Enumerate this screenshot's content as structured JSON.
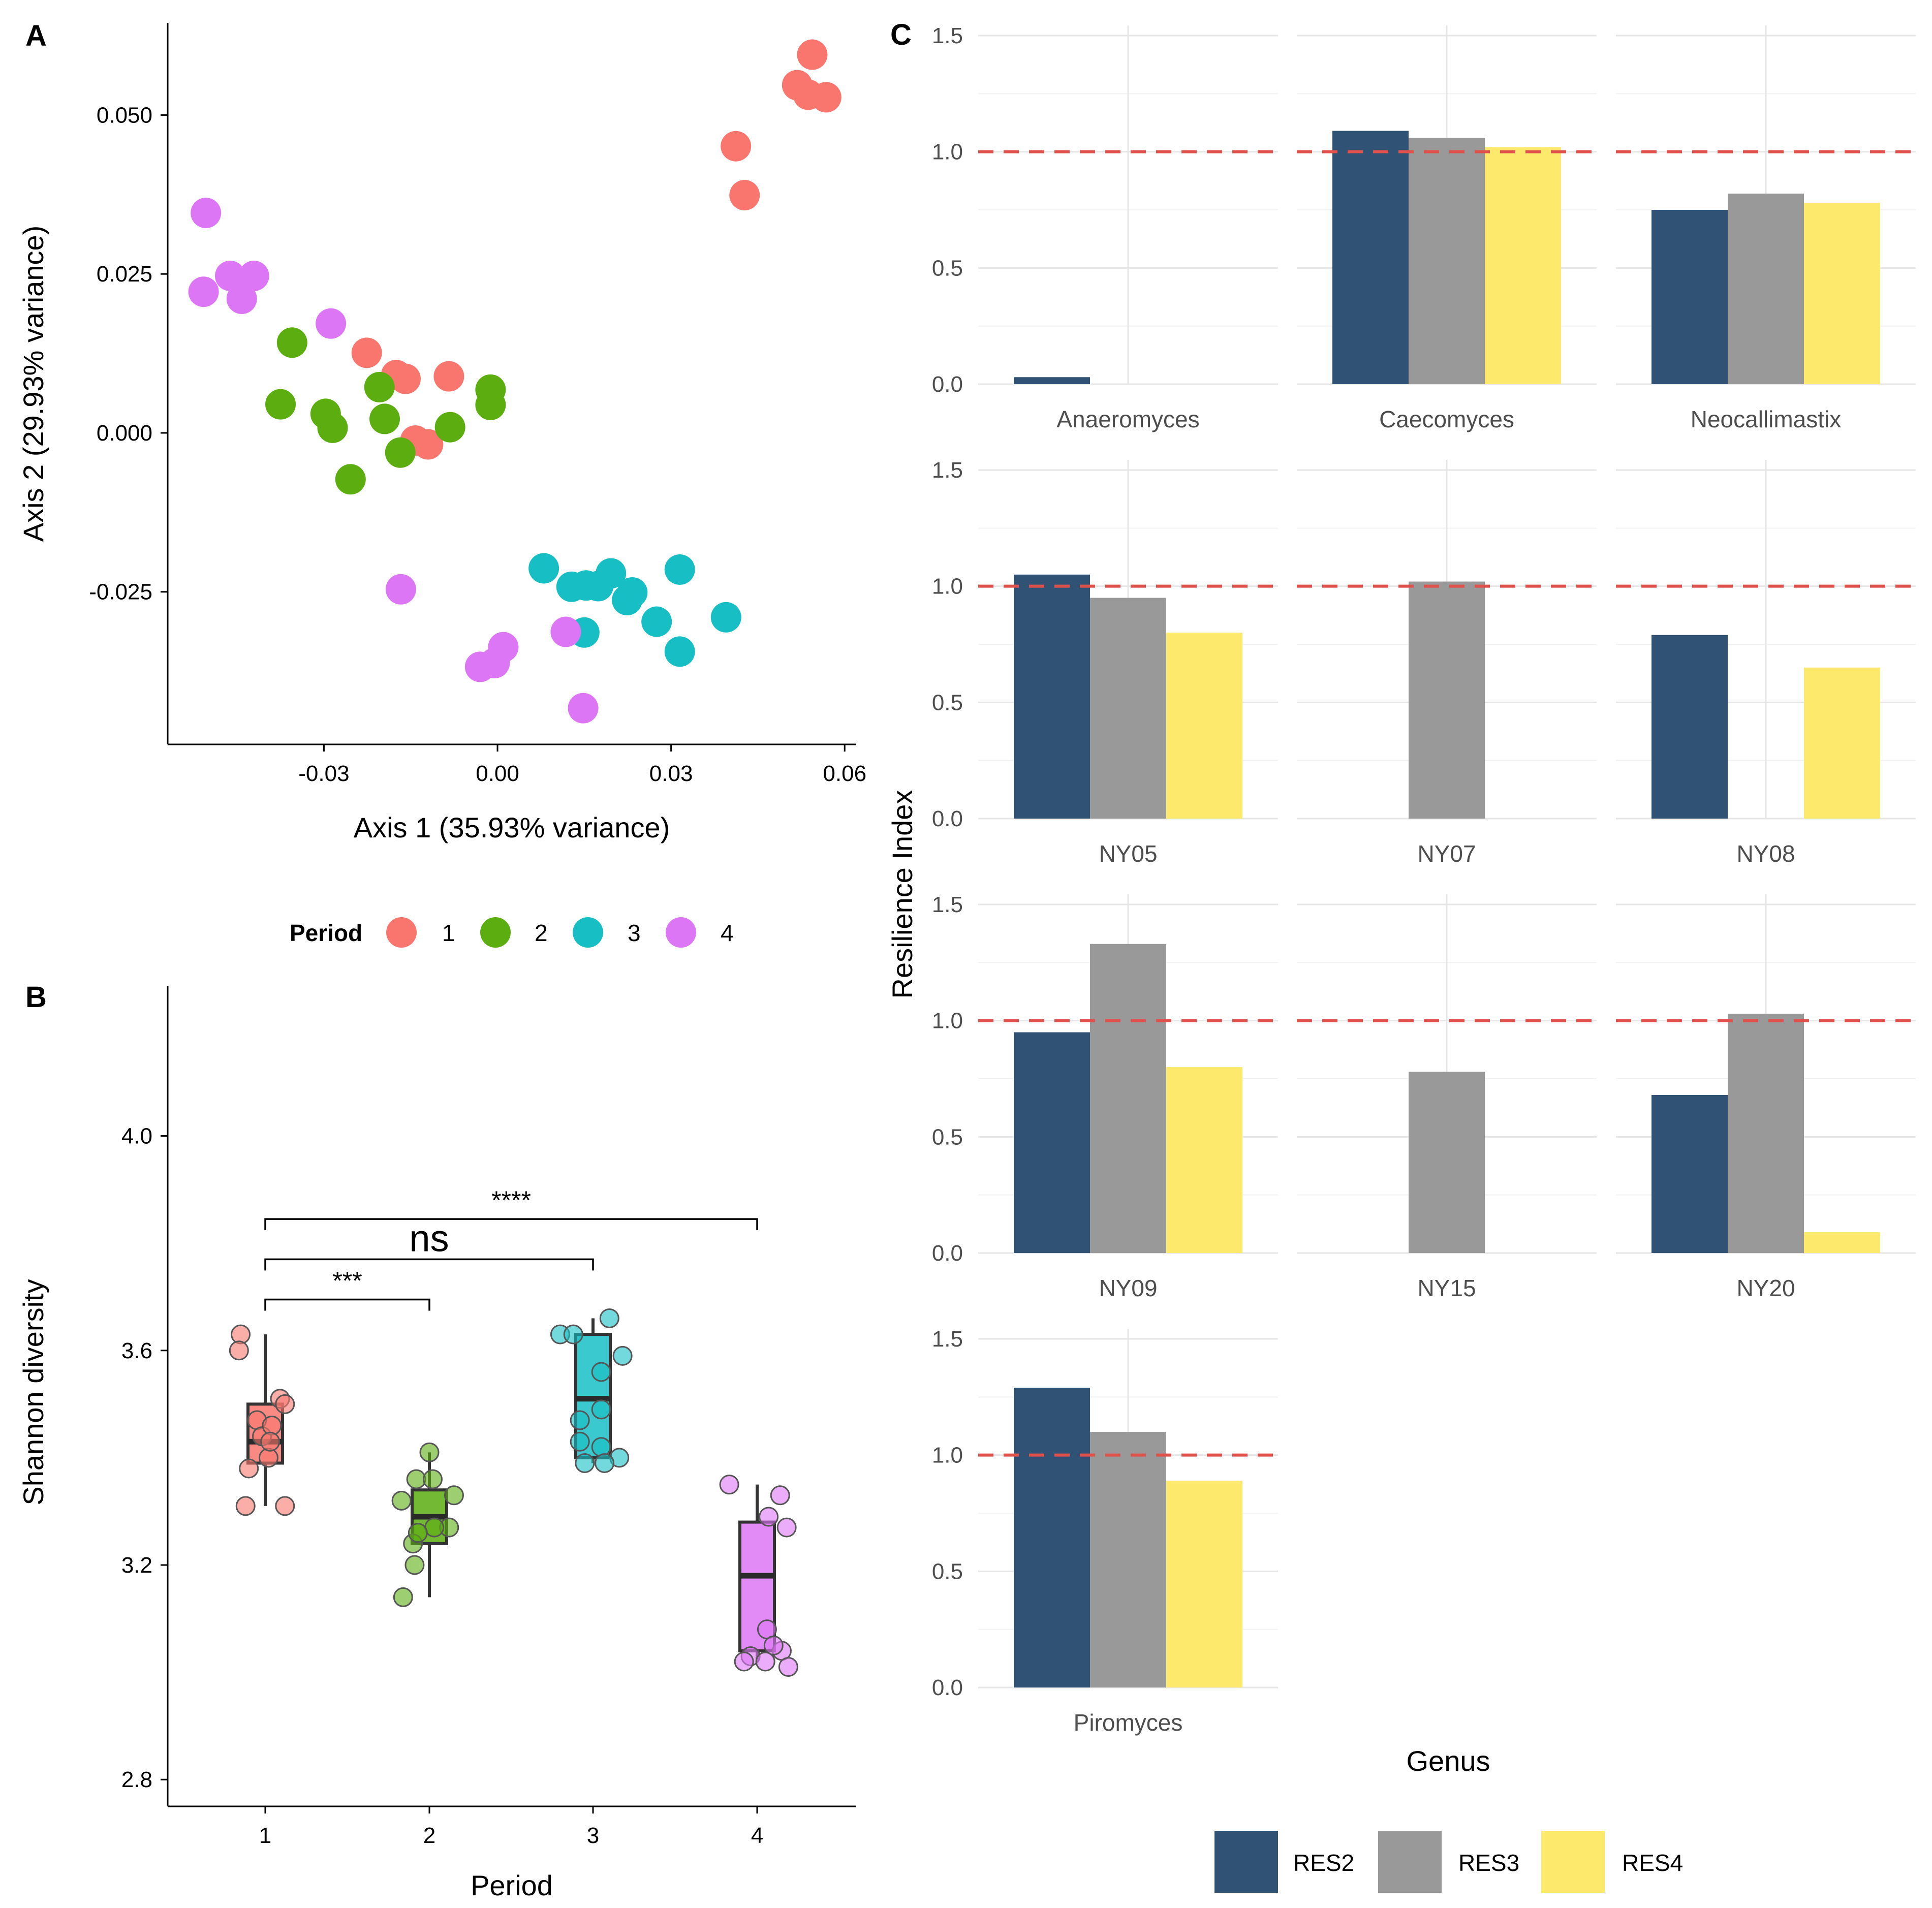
{
  "figure": {
    "panel_labels": [
      "A",
      "B",
      "C"
    ],
    "colors": {
      "period_1": "#F8766D",
      "period_2": "#5BAD10",
      "period_3": "#17BFC5",
      "period_4": "#DD76F5",
      "res2": "#2F5275",
      "res3": "#9A9999",
      "res4": "#FDE96C",
      "reference": "#E0514C",
      "grid": "#E6E6E6"
    }
  },
  "chart_data": [
    {
      "id": "A",
      "type": "scatter",
      "xlabel": "Axis 1 (35.93% variance)",
      "ylabel": "Axis 2 (29.93% variance)",
      "xlim": [
        -0.057,
        0.062
      ],
      "ylim": [
        -0.049,
        0.0645
      ],
      "xticks": [
        -0.03,
        0.0,
        0.03,
        0.06
      ],
      "xtick_labels": [
        "-0.03",
        "0.00",
        "0.03",
        "0.06"
      ],
      "yticks": [
        -0.025,
        0.0,
        0.025,
        0.05
      ],
      "ytick_labels": [
        "-0.025",
        "0.000",
        "0.025",
        "0.050"
      ],
      "legend": {
        "title": "Period",
        "position": "bottom",
        "entries": [
          "1",
          "2",
          "3",
          "4"
        ]
      },
      "series": [
        {
          "name": "1",
          "points": [
            [
              0.0544,
              0.0595
            ],
            [
              0.0518,
              0.0547
            ],
            [
              0.0537,
              0.0532
            ],
            [
              0.0568,
              0.0528
            ],
            [
              0.0412,
              0.0451
            ],
            [
              0.0427,
              0.0374
            ],
            [
              -0.0226,
              0.0126
            ],
            [
              -0.0175,
              0.0091
            ],
            [
              -0.0159,
              0.0085
            ],
            [
              -0.0084,
              0.0089
            ],
            [
              -0.0142,
              -0.0012
            ],
            [
              -0.012,
              -0.0018
            ]
          ]
        },
        {
          "name": "2",
          "points": [
            [
              -0.0355,
              0.0142
            ],
            [
              -0.0375,
              0.0045
            ],
            [
              -0.0297,
              0.003
            ],
            [
              -0.0285,
              0.0008
            ],
            [
              -0.0204,
              0.0072
            ],
            [
              -0.0195,
              0.0022
            ],
            [
              -0.0168,
              -0.0031
            ],
            [
              -0.0254,
              -0.0073
            ],
            [
              -0.0082,
              0.0009
            ],
            [
              -0.0012,
              0.0068
            ],
            [
              -0.0012,
              0.0044
            ]
          ]
        },
        {
          "name": "3",
          "points": [
            [
              0.008,
              -0.0213
            ],
            [
              0.0128,
              -0.0242
            ],
            [
              0.0153,
              -0.024
            ],
            [
              0.0174,
              -0.0241
            ],
            [
              0.0196,
              -0.0221
            ],
            [
              0.0233,
              -0.0251
            ],
            [
              0.0224,
              -0.0263
            ],
            [
              0.0315,
              -0.0215
            ],
            [
              0.0395,
              -0.029
            ],
            [
              0.0275,
              -0.0297
            ],
            [
              0.015,
              -0.0314
            ],
            [
              0.0315,
              -0.0344
            ]
          ]
        },
        {
          "name": "4",
          "points": [
            [
              -0.0504,
              0.0346
            ],
            [
              -0.0462,
              0.0247
            ],
            [
              -0.0421,
              0.0247
            ],
            [
              -0.0508,
              0.0222
            ],
            [
              -0.0442,
              0.0211
            ],
            [
              -0.0288,
              0.0172
            ],
            [
              -0.0167,
              -0.0246
            ],
            [
              0.0118,
              -0.0313
            ],
            [
              0.001,
              -0.0337
            ],
            [
              -0.0005,
              -0.0362
            ],
            [
              -0.003,
              -0.0368
            ],
            [
              0.0148,
              -0.0433
            ]
          ]
        }
      ]
    },
    {
      "id": "B",
      "type": "box",
      "xlabel": "Period",
      "ylabel": "Shannon diversity",
      "categories": [
        "1",
        "2",
        "3",
        "4"
      ],
      "ylim": [
        2.75,
        4.28
      ],
      "yticks": [
        2.8,
        3.2,
        3.6,
        4.0
      ],
      "ytick_labels": [
        "2.8",
        "3.2",
        "3.6",
        "4.0"
      ],
      "boxes": [
        {
          "q1": 3.39,
          "median": 3.43,
          "q3": 3.5,
          "whisker_low": 3.31,
          "whisker_high": 3.63
        },
        {
          "q1": 3.24,
          "median": 3.29,
          "q3": 3.34,
          "whisker_low": 3.14,
          "whisker_high": 3.41
        },
        {
          "q1": 3.4,
          "median": 3.51,
          "q3": 3.63,
          "whisker_low": 3.39,
          "whisker_high": 3.66
        },
        {
          "q1": 3.04,
          "median": 3.18,
          "q3": 3.28,
          "whisker_low": 3.02,
          "whisker_high": 3.35
        }
      ],
      "points": [
        [
          [
            -0.15,
            3.63
          ],
          [
            -0.16,
            3.6
          ],
          [
            -0.05,
            3.47
          ],
          [
            -0.02,
            3.44
          ],
          [
            0.04,
            3.46
          ],
          [
            0.02,
            3.4
          ],
          [
            -0.1,
            3.38
          ],
          [
            0.09,
            3.51
          ],
          [
            0.12,
            3.5
          ],
          [
            -0.12,
            3.31
          ],
          [
            0.12,
            3.31
          ],
          [
            0.03,
            3.43
          ]
        ],
        [
          [
            0.0,
            3.41
          ],
          [
            0.15,
            3.33
          ],
          [
            -0.17,
            3.32
          ],
          [
            -0.08,
            3.36
          ],
          [
            0.02,
            3.36
          ],
          [
            -0.1,
            3.24
          ],
          [
            0.12,
            3.27
          ],
          [
            0.03,
            3.27
          ],
          [
            -0.07,
            3.26
          ],
          [
            -0.09,
            3.2
          ],
          [
            -0.16,
            3.14
          ]
        ],
        [
          [
            -0.2,
            3.63
          ],
          [
            -0.12,
            3.63
          ],
          [
            0.1,
            3.66
          ],
          [
            0.18,
            3.59
          ],
          [
            0.05,
            3.56
          ],
          [
            -0.08,
            3.47
          ],
          [
            0.05,
            3.49
          ],
          [
            -0.08,
            3.43
          ],
          [
            0.05,
            3.42
          ],
          [
            0.16,
            3.4
          ],
          [
            -0.05,
            3.39
          ],
          [
            0.07,
            3.39
          ]
        ],
        [
          [
            -0.17,
            3.35
          ],
          [
            0.14,
            3.33
          ],
          [
            0.07,
            3.29
          ],
          [
            0.18,
            3.27
          ],
          [
            -0.04,
            3.03
          ],
          [
            0.06,
            3.08
          ],
          [
            0.15,
            3.04
          ],
          [
            0.1,
            3.05
          ],
          [
            0.05,
            3.02
          ],
          [
            0.19,
            3.01
          ],
          [
            -0.08,
            3.02
          ]
        ]
      ],
      "comparisons": [
        {
          "from": "1",
          "to": "2",
          "y": 3.695,
          "label": "***"
        },
        {
          "from": "1",
          "to": "3",
          "y": 3.77,
          "label": "ns"
        },
        {
          "from": "1",
          "to": "4",
          "y": 3.845,
          "label": "****"
        }
      ]
    },
    {
      "id": "C",
      "type": "bar",
      "facet": "grouped bars by genus",
      "xlabel": "Genus",
      "ylabel": "Resilience Index",
      "ylim": [
        0,
        1.5
      ],
      "yticks": [
        0.0,
        0.5,
        1.0,
        1.5
      ],
      "ytick_labels": [
        "0.0",
        "0.5",
        "1.0",
        "1.5"
      ],
      "reference_line": 1.0,
      "series_names": [
        "RES2",
        "RES3",
        "RES4"
      ],
      "legend": {
        "position": "bottom",
        "entries": [
          "RES2",
          "RES3",
          "RES4"
        ]
      },
      "facets": [
        {
          "genus": "Anaeromyces",
          "values": [
            0.03,
            null,
            null
          ]
        },
        {
          "genus": "Caecomyces",
          "values": [
            1.09,
            1.06,
            1.02
          ]
        },
        {
          "genus": "Neocallimastix",
          "values": [
            0.75,
            0.82,
            0.78
          ]
        },
        {
          "genus": "NY05",
          "values": [
            1.05,
            0.95,
            0.8
          ]
        },
        {
          "genus": "NY07",
          "values": [
            null,
            1.02,
            null
          ]
        },
        {
          "genus": "NY08",
          "values": [
            0.79,
            null,
            0.65
          ]
        },
        {
          "genus": "NY09",
          "values": [
            0.95,
            1.33,
            0.8
          ]
        },
        {
          "genus": "NY15",
          "values": [
            null,
            0.78,
            null
          ]
        },
        {
          "genus": "NY20",
          "values": [
            0.68,
            1.03,
            0.09
          ]
        },
        {
          "genus": "Piromyces",
          "values": [
            1.29,
            1.1,
            0.89
          ]
        }
      ]
    }
  ]
}
